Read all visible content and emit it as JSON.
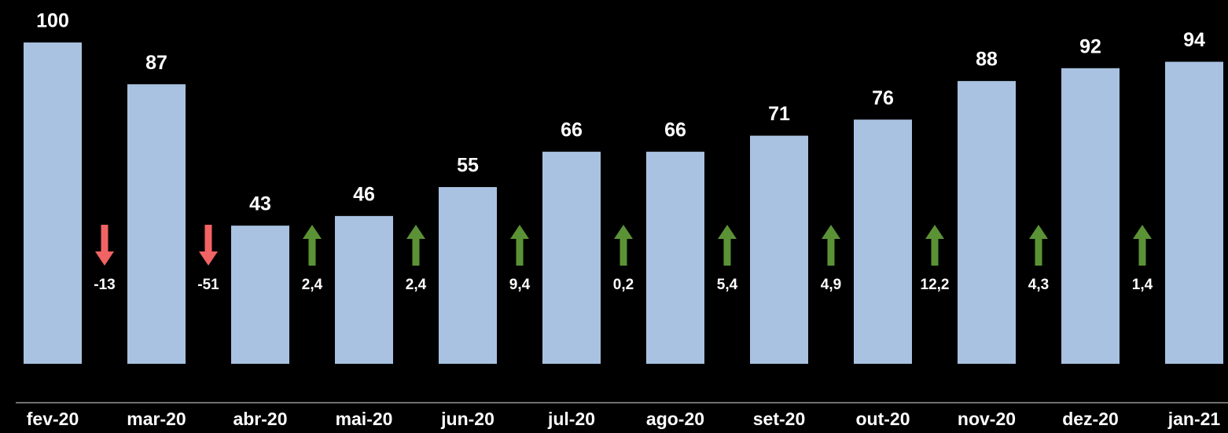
{
  "chart_data": {
    "type": "bar",
    "categories": [
      "fev-20",
      "mar-20",
      "abr-20",
      "mai-20",
      "jun-20",
      "jul-20",
      "ago-20",
      "set-20",
      "out-20",
      "nov-20",
      "dez-20",
      "jan-21"
    ],
    "values": [
      100,
      87,
      43,
      46,
      55,
      66,
      66,
      71,
      76,
      88,
      92,
      94
    ],
    "color": "#a9c2e1",
    "ylim": [
      -12,
      112
    ],
    "changes": {
      "values": [
        -13,
        -51,
        2.4,
        2.4,
        9.4,
        0.2,
        5.4,
        4.9,
        12.2,
        4.3,
        1.4
      ],
      "value_labels": [
        "-13",
        "-51",
        "2,4",
        "2,4",
        "9,4",
        "0,2",
        "5,4",
        "4,9",
        "12,2",
        "4,3",
        "1,4"
      ],
      "up_color": "#5b9236",
      "down_color": "#f26363"
    }
  }
}
